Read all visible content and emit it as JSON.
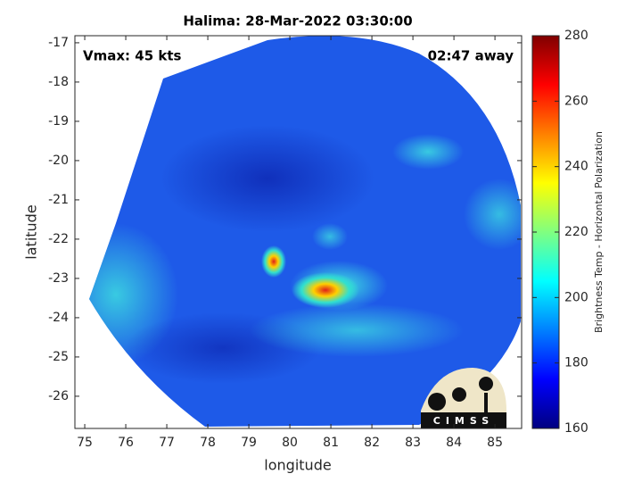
{
  "chart_data": {
    "type": "image",
    "title": "Halima: 28-Mar-2022 03:30:00",
    "xlabel": "longitude",
    "ylabel": "latitude",
    "xlim": [
      74.76,
      85.65
    ],
    "xticks": [
      75,
      76,
      77,
      78,
      79,
      80,
      81,
      82,
      83,
      84,
      85
    ],
    "ylim": [
      -26.82,
      -16.82
    ],
    "yticks": [
      -17,
      -18,
      -19,
      -20,
      -21,
      -22,
      -23,
      -24,
      -25,
      -26
    ],
    "annotations": [
      "Vmax: 45 kts",
      "02:47 away"
    ],
    "colorbar": {
      "label": "Brightness Temp - Horizontal Polarization",
      "colormap": "jet",
      "lim": [
        160,
        280
      ],
      "ticks": [
        160,
        180,
        200,
        220,
        240,
        260,
        280
      ]
    },
    "watermark": "CIMSS"
  }
}
